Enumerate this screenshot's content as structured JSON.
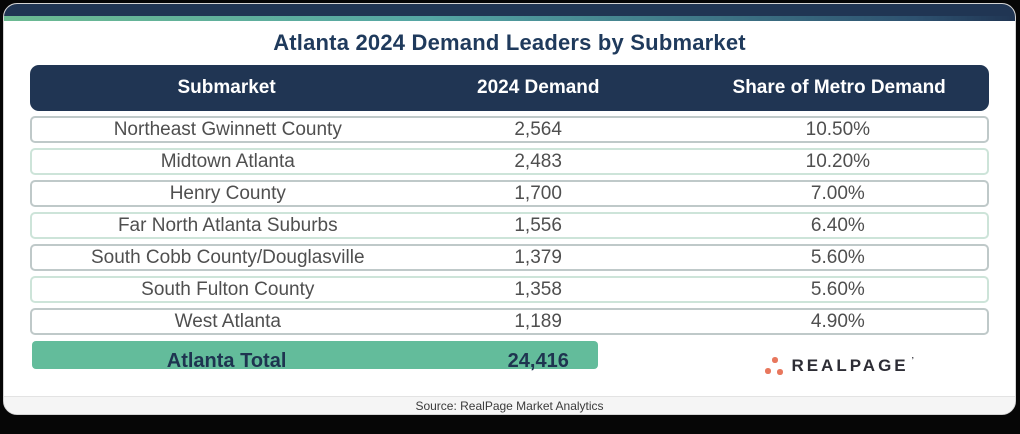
{
  "title": "Atlanta 2024 Demand Leaders by Submarket",
  "table": {
    "columns": [
      "Submarket",
      "2024 Demand",
      "Share of Metro Demand"
    ],
    "rows": [
      {
        "submarket": "Northeast Gwinnett County",
        "demand": "2,564",
        "share": "10.50%"
      },
      {
        "submarket": "Midtown Atlanta",
        "demand": "2,483",
        "share": "10.20%"
      },
      {
        "submarket": "Henry County",
        "demand": "1,700",
        "share": "7.00%"
      },
      {
        "submarket": "Far North Atlanta Suburbs",
        "demand": "1,556",
        "share": "6.40%"
      },
      {
        "submarket": "South Cobb County/Douglasville",
        "demand": "1,379",
        "share": "5.60%"
      },
      {
        "submarket": "South Fulton County",
        "demand": "1,358",
        "share": "5.60%"
      },
      {
        "submarket": "West Atlanta",
        "demand": "1,189",
        "share": "4.90%"
      }
    ],
    "total": {
      "label": "Atlanta Total",
      "demand": "24,416"
    }
  },
  "logo": {
    "text": "REALPAGE"
  },
  "footer": {
    "source": "Source: RealPage Market Analytics"
  },
  "colors": {
    "navy": "#203553",
    "accent_teal": "#55a6a4",
    "accent_green": "#6cba92",
    "total_green": "#63bc9b",
    "row_border_gray": "#bfc9c9",
    "row_border_green": "#cde4d9",
    "logo_dot_orange": "#e8775d",
    "row_text_gray": "#4f4f4f"
  },
  "chart_data": {
    "type": "table",
    "title": "Atlanta 2024 Demand Leaders by Submarket",
    "columns": [
      "Submarket",
      "2024 Demand",
      "Share of Metro Demand"
    ],
    "rows": [
      [
        "Northeast Gwinnett County",
        2564,
        "10.50%"
      ],
      [
        "Midtown Atlanta",
        2483,
        "10.20%"
      ],
      [
        "Henry County",
        1700,
        "7.00%"
      ],
      [
        "Far North Atlanta Suburbs",
        1556,
        "6.40%"
      ],
      [
        "South Cobb County/Douglasville",
        1379,
        "5.60%"
      ],
      [
        "South Fulton County",
        1358,
        "5.60%"
      ],
      [
        "West Atlanta",
        1189,
        "4.90%"
      ]
    ],
    "total_row": [
      "Atlanta Total",
      24416
    ],
    "source": "Source: RealPage Market Analytics"
  }
}
